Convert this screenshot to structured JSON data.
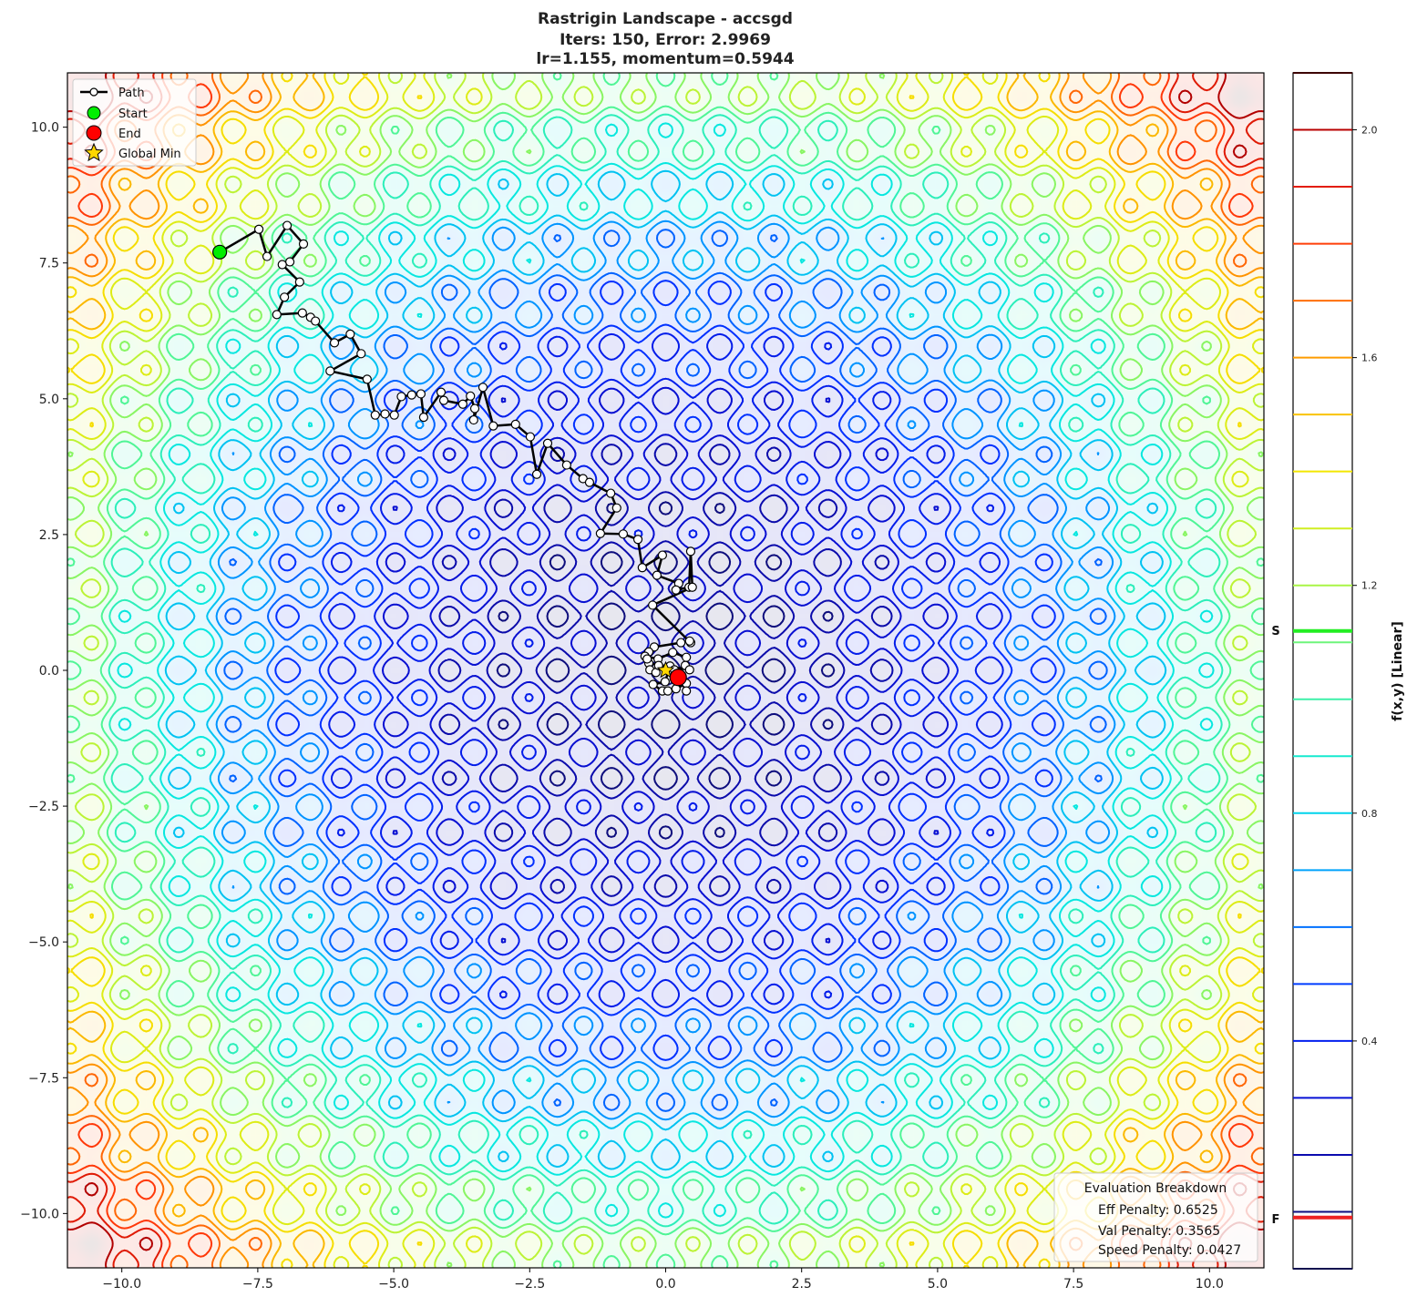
{
  "chart_data": {
    "type": "contour",
    "title": [
      "Rastrigin Landscape - accsgd",
      "Iters: 150, Error: 2.9969",
      "lr=1.155, momentum=0.5944"
    ],
    "function": "rastrigin",
    "xlim": [
      -11,
      11
    ],
    "ylim": [
      -11,
      11
    ],
    "xticks": [
      "−10.0",
      "−7.5",
      "−5.0",
      "−2.5",
      "0.0",
      "2.5",
      "5.0",
      "7.5",
      "10.0"
    ],
    "xtick_values": [
      -10,
      -7.5,
      -5,
      -2.5,
      0,
      2.5,
      5,
      7.5,
      10
    ],
    "yticks": [
      "10.0",
      "7.5",
      "5.0",
      "2.5",
      "0.0",
      "−2.5",
      "−5.0",
      "−7.5",
      "−10.0"
    ],
    "ytick_values": [
      10,
      7.5,
      5,
      2.5,
      0,
      -2.5,
      -5,
      -7.5,
      -10
    ],
    "colormap": "jet-like",
    "colorbar": {
      "label": "f(x,y) [Linear]",
      "range": [
        0.0,
        2.1
      ],
      "ticks": [
        "2.0",
        "1.6",
        "1.2",
        "0.8",
        "0.4"
      ],
      "tick_values": [
        2.0,
        1.6,
        1.2,
        0.8,
        0.4
      ],
      "start_marker": {
        "label": "S",
        "value": 1.12,
        "color": "#22ee22"
      },
      "final_marker": {
        "label": "F",
        "value": 0.09,
        "color": "#ee2222"
      }
    },
    "legend": {
      "placement": "top-left",
      "items": [
        {
          "label": "Path",
          "marker": "line-white-circle"
        },
        {
          "label": "Start",
          "marker": "circle",
          "color": "#00ee00"
        },
        {
          "label": "End",
          "marker": "circle",
          "color": "#ff0000"
        },
        {
          "label": "Global Min",
          "marker": "star",
          "color": "#ffd700"
        }
      ]
    },
    "path": [
      [
        -8.2,
        7.7
      ],
      [
        -7.48,
        8.12
      ],
      [
        -7.33,
        7.62
      ],
      [
        -6.96,
        8.19
      ],
      [
        -6.66,
        7.85
      ],
      [
        -6.91,
        7.52
      ],
      [
        -7.05,
        7.47
      ],
      [
        -6.73,
        7.15
      ],
      [
        -7.01,
        6.87
      ],
      [
        -7.15,
        6.55
      ],
      [
        -6.68,
        6.58
      ],
      [
        -6.53,
        6.5
      ],
      [
        -6.44,
        6.43
      ],
      [
        -6.09,
        6.03
      ],
      [
        -5.8,
        6.19
      ],
      [
        -5.6,
        5.83
      ],
      [
        -6.17,
        5.51
      ],
      [
        -5.49,
        5.36
      ],
      [
        -5.34,
        4.7
      ],
      [
        -5.16,
        4.72
      ],
      [
        -4.99,
        4.7
      ],
      [
        -4.86,
        5.04
      ],
      [
        -4.67,
        5.07
      ],
      [
        -4.5,
        5.09
      ],
      [
        -4.45,
        4.66
      ],
      [
        -4.13,
        5.12
      ],
      [
        -4.08,
        4.97
      ],
      [
        -3.73,
        4.9
      ],
      [
        -3.59,
        5.05
      ],
      [
        -3.51,
        4.82
      ],
      [
        -3.53,
        4.61
      ],
      [
        -3.36,
        5.21
      ],
      [
        -3.17,
        4.5
      ],
      [
        -2.76,
        4.53
      ],
      [
        -2.49,
        4.3
      ],
      [
        -2.37,
        3.61
      ],
      [
        -2.17,
        4.18
      ],
      [
        -1.82,
        3.78
      ],
      [
        -1.52,
        3.53
      ],
      [
        -1.4,
        3.46
      ],
      [
        -1.01,
        3.26
      ],
      [
        -0.9,
        2.99
      ],
      [
        -1.2,
        2.52
      ],
      [
        -0.78,
        2.51
      ],
      [
        -0.51,
        2.41
      ],
      [
        -0.43,
        1.89
      ],
      [
        -0.06,
        2.12
      ],
      [
        -0.16,
        1.75
      ],
      [
        0.24,
        1.6
      ],
      [
        0.19,
        1.48
      ],
      [
        0.43,
        1.53
      ],
      [
        0.46,
        2.19
      ],
      [
        0.49,
        1.53
      ],
      [
        -0.24,
        1.2
      ],
      [
        0.46,
        0.51
      ],
      [
        0.44,
        0.54
      ],
      [
        0.28,
        0.51
      ],
      [
        -0.21,
        0.43
      ],
      [
        -0.31,
        0.34
      ],
      [
        -0.38,
        0.26
      ],
      [
        -0.14,
        0.21
      ],
      [
        0.13,
        0.33
      ],
      [
        0.38,
        0.24
      ],
      [
        0.36,
        0.09
      ],
      [
        0.44,
        0.01
      ],
      [
        -0.31,
        0.13
      ],
      [
        -0.34,
        0.21
      ],
      [
        -0.29,
        0.01
      ],
      [
        -0.18,
        -0.04
      ],
      [
        -0.13,
        0.09
      ],
      [
        0.08,
        0.08
      ],
      [
        -0.01,
        -0.21
      ],
      [
        -0.23,
        -0.26
      ],
      [
        -0.06,
        -0.38
      ],
      [
        0.04,
        -0.38
      ],
      [
        0.19,
        -0.34
      ],
      [
        0.38,
        -0.24
      ],
      [
        0.38,
        -0.38
      ],
      [
        0.16,
        0.01
      ],
      [
        0.23,
        -0.13
      ]
    ],
    "start": [
      -8.2,
      7.7
    ],
    "end": [
      0.23,
      -0.13
    ],
    "global_min": [
      0,
      0
    ],
    "evaluation": {
      "title": "Evaluation Breakdown",
      "placement": "bottom-right",
      "lines": [
        "Eff Penalty: 0.6525",
        "Val Penalty: 0.3565",
        "Speed Penalty: 0.0427"
      ]
    }
  }
}
